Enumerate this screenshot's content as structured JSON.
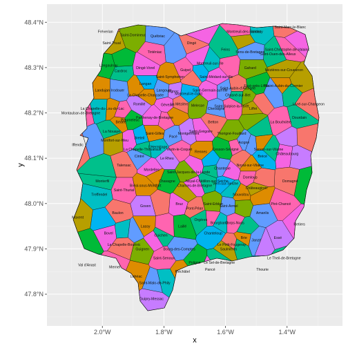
{
  "chart_data": {
    "type": "map",
    "xlabel": "x",
    "ylabel": "y",
    "x_ticks": [
      {
        "value": -2.0,
        "label": "2.0°W"
      },
      {
        "value": -1.8,
        "label": "1.8°W"
      },
      {
        "value": -1.6,
        "label": "1.6°W"
      },
      {
        "value": -1.4,
        "label": "1.4°W"
      }
    ],
    "y_ticks": [
      {
        "value": 47.8,
        "label": "47.8°N"
      },
      {
        "value": 47.9,
        "label": "47.9°N"
      },
      {
        "value": 48.0,
        "label": "48.0°N"
      },
      {
        "value": 48.1,
        "label": "48.1°N"
      },
      {
        "value": 48.2,
        "label": "48.2°N"
      },
      {
        "value": 48.3,
        "label": "48.3°N"
      },
      {
        "value": 48.4,
        "label": "48.4°N"
      }
    ],
    "xlim": [
      -2.18,
      -1.22
    ],
    "ylim": [
      47.73,
      48.44
    ],
    "grid": true,
    "legend": "none",
    "colors": {
      "panel_background": "#ebebeb",
      "grid_major": "#ffffff",
      "grid_minor": "#f5f5f5",
      "outline": "#000000",
      "palette": [
        "#f8766d",
        "#00ba38",
        "#619cff",
        "#00bfc4",
        "#f564e3",
        "#b79f00",
        "#de8c00",
        "#7cae00",
        "#00c08b",
        "#c77cff",
        "#ff64b0",
        "#00b4f0"
      ]
    },
    "communes": [
      {
        "name": "Fréverian",
        "lon": -1.99,
        "lat": 48.38
      },
      {
        "name": "Saint-Domineuc",
        "lon": -1.9,
        "lat": 48.372
      },
      {
        "name": "Québriac",
        "lon": -1.82,
        "lat": 48.37
      },
      {
        "name": "Tinténiac",
        "lon": -1.83,
        "lat": 48.335
      },
      {
        "name": "Saint-Thual",
        "lon": -1.97,
        "lat": 48.355
      },
      {
        "name": "Dingé",
        "lon": -1.71,
        "lat": 48.355
      },
      {
        "name": "Feins",
        "lon": -1.6,
        "lat": 48.34
      },
      {
        "name": "Montreuil-sur-Ille",
        "lon": -1.65,
        "lat": 48.31
      },
      {
        "name": "Guipel",
        "lon": -1.73,
        "lat": 48.295
      },
      {
        "name": "Saint-Symphorien",
        "lon": -1.78,
        "lat": 48.28
      },
      {
        "name": "Longaulnay",
        "lon": -1.98,
        "lat": 48.305
      },
      {
        "name": "Cardroc",
        "lon": -1.94,
        "lat": 48.293
      },
      {
        "name": "Dingé-Vorel",
        "lon": -1.86,
        "lat": 48.3
      },
      {
        "name": "Langan",
        "lon": -1.86,
        "lat": 48.265
      },
      {
        "name": "La Chapelle-Chaussée",
        "lon": -1.86,
        "lat": 48.24
      },
      {
        "name": "Langouet",
        "lon": -1.8,
        "lat": 48.25
      },
      {
        "name": "Vignoc",
        "lon": -1.77,
        "lat": 48.248
      },
      {
        "name": "Saint-Médard-sur-Ille",
        "lon": -1.63,
        "lat": 48.28
      },
      {
        "name": "Saint-Aubin-d'Aubigné",
        "lon": -1.56,
        "lat": 48.255
      },
      {
        "name": "Gahard",
        "lon": -1.52,
        "lat": 48.3
      },
      {
        "name": "Sens-de-Bretagne",
        "lon": -1.52,
        "lat": 48.335
      },
      {
        "name": "Saint-Christophe-de-Valains",
        "lon": -1.4,
        "lat": 48.34
      },
      {
        "name": "Mézières-sur-Couesnon",
        "lon": -1.41,
        "lat": 48.295
      },
      {
        "name": "Saint-Marc-le-Blanc",
        "lon": -1.39,
        "lat": 48.39
      },
      {
        "name": "Saint-Ouen-des-Alleux",
        "lon": -1.43,
        "lat": 48.33
      },
      {
        "name": "Romazy",
        "lon": -1.5,
        "lat": 48.38
      },
      {
        "name": "Montreuil-des-Landes",
        "lon": -1.54,
        "lat": 48.38
      },
      {
        "name": "Saint-Aubin-du-Cormier",
        "lon": -1.41,
        "lat": 48.26
      },
      {
        "name": "Ercé-près-Liffré",
        "lon": -1.5,
        "lat": 48.26
      },
      {
        "name": "Chasné-sur-Illet",
        "lon": -1.56,
        "lat": 48.24
      },
      {
        "name": "Saint-Germain-sur-Ille",
        "lon": -1.65,
        "lat": 48.25
      },
      {
        "name": "Montreuil-le-Gast",
        "lon": -1.72,
        "lat": 48.243
      },
      {
        "name": "Landujan",
        "lon": -2.0,
        "lat": 48.25
      },
      {
        "name": "Irodouer",
        "lon": -1.95,
        "lat": 48.25
      },
      {
        "name": "Romillé",
        "lon": -1.88,
        "lat": 48.22
      },
      {
        "name": "Gévezé",
        "lon": -1.79,
        "lat": 48.218
      },
      {
        "name": "La Mézière",
        "lon": -1.75,
        "lat": 48.22
      },
      {
        "name": "Melesse",
        "lon": -1.69,
        "lat": 48.217
      },
      {
        "name": "Chevaigné",
        "lon": -1.63,
        "lat": 48.21
      },
      {
        "name": "Saint-Sulpice-la-Forêt",
        "lon": -1.58,
        "lat": 48.215
      },
      {
        "name": "Liffré",
        "lon": -1.51,
        "lat": 48.21
      },
      {
        "name": "Livré-sur-Changeon",
        "lon": -1.33,
        "lat": 48.22
      },
      {
        "name": "Dourdain",
        "lon": -1.36,
        "lat": 48.19
      },
      {
        "name": "La Chapelle-du-Lou-du-Lac",
        "lon": -2.0,
        "lat": 48.21
      },
      {
        "name": "Montauban-de-Bretagne",
        "lon": -2.07,
        "lat": 48.2
      },
      {
        "name": "Bédée",
        "lon": -1.94,
        "lat": 48.18
      },
      {
        "name": "Pleumeleuc",
        "lon": -1.91,
        "lat": 48.185
      },
      {
        "name": "La Nouaye",
        "lon": -1.97,
        "lat": 48.16
      },
      {
        "name": "Parthenay-de-Bretagne",
        "lon": -1.83,
        "lat": 48.19
      },
      {
        "name": "Breteil",
        "lon": -1.88,
        "lat": 48.145
      },
      {
        "name": "Saint-Gilles",
        "lon": -1.83,
        "lat": 48.155
      },
      {
        "name": "Pacé",
        "lon": -1.77,
        "lat": 48.148
      },
      {
        "name": "Montgermont",
        "lon": -1.72,
        "lat": 48.155
      },
      {
        "name": "Saint-Grégoire",
        "lon": -1.68,
        "lat": 48.16
      },
      {
        "name": "Betton",
        "lon": -1.64,
        "lat": 48.18
      },
      {
        "name": "Thorigné-Fouillard",
        "lon": -1.58,
        "lat": 48.155
      },
      {
        "name": "Acigné",
        "lon": -1.54,
        "lat": 48.135
      },
      {
        "name": "La Bouëxière",
        "lon": -1.42,
        "lat": 48.18
      },
      {
        "name": "Montfort-sur-Meu",
        "lon": -1.96,
        "lat": 48.14
      },
      {
        "name": "Iffendic",
        "lon": -2.08,
        "lat": 48.13
      },
      {
        "name": "La Chapelle-Thouarault",
        "lon": -1.87,
        "lat": 48.12
      },
      {
        "name": "L'Hermitage",
        "lon": -1.82,
        "lat": 48.125
      },
      {
        "name": "Vezin-le-Coquet",
        "lon": -1.75,
        "lat": 48.12
      },
      {
        "name": "Rennes",
        "lon": -1.68,
        "lat": 48.115
      },
      {
        "name": "Cesson-Sévigné",
        "lon": -1.6,
        "lat": 48.12
      },
      {
        "name": "Servon-sur-Vilaine",
        "lon": -1.46,
        "lat": 48.12
      },
      {
        "name": "Châteaubourg",
        "lon": -1.4,
        "lat": 48.11
      },
      {
        "name": "Brécé",
        "lon": -1.48,
        "lat": 48.105
      },
      {
        "name": "Noyal-sur-Vilaine",
        "lon": -1.52,
        "lat": 48.085
      },
      {
        "name": "Cintré",
        "lon": -1.88,
        "lat": 48.105
      },
      {
        "name": "Le Rheu",
        "lon": -1.79,
        "lat": 48.1
      },
      {
        "name": "Mordelles",
        "lon": -1.84,
        "lat": 48.075
      },
      {
        "name": "Talensac",
        "lon": -1.93,
        "lat": 48.085
      },
      {
        "name": "Saint-Jacques-de-la-Lande",
        "lon": -1.72,
        "lat": 48.07
      },
      {
        "name": "Chantepie",
        "lon": -1.61,
        "lat": 48.078
      },
      {
        "name": "Domloup",
        "lon": -1.52,
        "lat": 48.058
      },
      {
        "name": "Châteaugiron",
        "lon": -1.5,
        "lat": 48.035
      },
      {
        "name": "Domagné",
        "lon": -1.39,
        "lat": 48.05
      },
      {
        "name": "Monterfil",
        "lon": -2.0,
        "lat": 48.05
      },
      {
        "name": "Treffendel",
        "lon": -2.01,
        "lat": 48.02
      },
      {
        "name": "Saint-Thurial",
        "lon": -1.93,
        "lat": 48.03
      },
      {
        "name": "Bréal-sous-Montfort",
        "lon": -1.86,
        "lat": 48.04
      },
      {
        "name": "Chavagne",
        "lon": -1.79,
        "lat": 48.05
      },
      {
        "name": "Noyal-Châtillon-sur-Seiche",
        "lon": -1.66,
        "lat": 48.05
      },
      {
        "name": "Chartres-de-Bretagne",
        "lon": -1.7,
        "lat": 48.04
      },
      {
        "name": "Vern-sur-Seiche",
        "lon": -1.6,
        "lat": 48.045
      },
      {
        "name": "Nouvoitou",
        "lon": -1.55,
        "lat": 48.02
      },
      {
        "name": "Saint-Armel",
        "lon": -1.59,
        "lat": 47.995
      },
      {
        "name": "Goven",
        "lon": -1.86,
        "lat": 47.995
      },
      {
        "name": "Bruz",
        "lon": -1.75,
        "lat": 48.0
      },
      {
        "name": "Pont-Péan",
        "lon": -1.7,
        "lat": 47.99
      },
      {
        "name": "Saint-Erblon",
        "lon": -1.64,
        "lat": 48.0
      },
      {
        "name": "Amanlis",
        "lon": -1.48,
        "lat": 47.98
      },
      {
        "name": "Piré-Chancé",
        "lon": -1.42,
        "lat": 48.0
      },
      {
        "name": "Maxent",
        "lon": -2.08,
        "lat": 47.97
      },
      {
        "name": "Baulon",
        "lon": -1.95,
        "lat": 47.98
      },
      {
        "name": "Orgères",
        "lon": -1.68,
        "lat": 47.965
      },
      {
        "name": "Bourgbarré",
        "lon": -1.62,
        "lat": 47.958
      },
      {
        "name": "Corps-Nuds",
        "lon": -1.57,
        "lat": 47.958
      },
      {
        "name": "Lassy",
        "lon": -1.86,
        "lat": 47.95
      },
      {
        "name": "Laillé",
        "lon": -1.74,
        "lat": 47.95
      },
      {
        "name": "Guichen",
        "lon": -1.81,
        "lat": 47.93
      },
      {
        "name": "Bovel",
        "lon": -1.98,
        "lat": 47.935
      },
      {
        "name": "Chanteloup",
        "lon": -1.64,
        "lat": 47.935
      },
      {
        "name": "Brie",
        "lon": -1.54,
        "lat": 47.925
      },
      {
        "name": "Janzé",
        "lon": -1.5,
        "lat": 47.92
      },
      {
        "name": "Essé",
        "lon": -1.43,
        "lat": 47.925
      },
      {
        "name": "Retiers",
        "lon": -1.36,
        "lat": 47.955
      },
      {
        "name": "La Chapelle-Bouëxic",
        "lon": -1.93,
        "lat": 47.91
      },
      {
        "name": "Guignen",
        "lon": -1.87,
        "lat": 47.9
      },
      {
        "name": "Bourg-des-Comptes",
        "lon": -1.75,
        "lat": 47.9
      },
      {
        "name": "Saint-Senoux",
        "lon": -1.8,
        "lat": 47.88
      },
      {
        "name": "Saulnières",
        "lon": -1.59,
        "lat": 47.9
      },
      {
        "name": "Le Petit-Fougeray",
        "lon": -1.58,
        "lat": 47.91
      },
      {
        "name": "Le Theil-de-Bretagne",
        "lon": -1.41,
        "lat": 47.88
      },
      {
        "name": "Val d'Anast",
        "lon": -2.05,
        "lat": 47.865
      },
      {
        "name": "Mernel",
        "lon": -1.96,
        "lat": 47.86
      },
      {
        "name": "Pléchâtel",
        "lon": -1.74,
        "lat": 47.85
      },
      {
        "name": "Poligné",
        "lon": -1.7,
        "lat": 47.87
      },
      {
        "name": "Le Sel-de-Bretagne",
        "lon": -1.62,
        "lat": 47.87
      },
      {
        "name": "Pancé",
        "lon": -1.65,
        "lat": 47.855
      },
      {
        "name": "Thourie",
        "lon": -1.48,
        "lat": 47.855
      },
      {
        "name": "Lohéac",
        "lon": -1.89,
        "lat": 47.84
      },
      {
        "name": "Saint-Malo-de-Phily",
        "lon": -1.83,
        "lat": 47.825
      },
      {
        "name": "Guipry-Messac",
        "lon": -1.84,
        "lat": 47.79
      }
    ]
  }
}
